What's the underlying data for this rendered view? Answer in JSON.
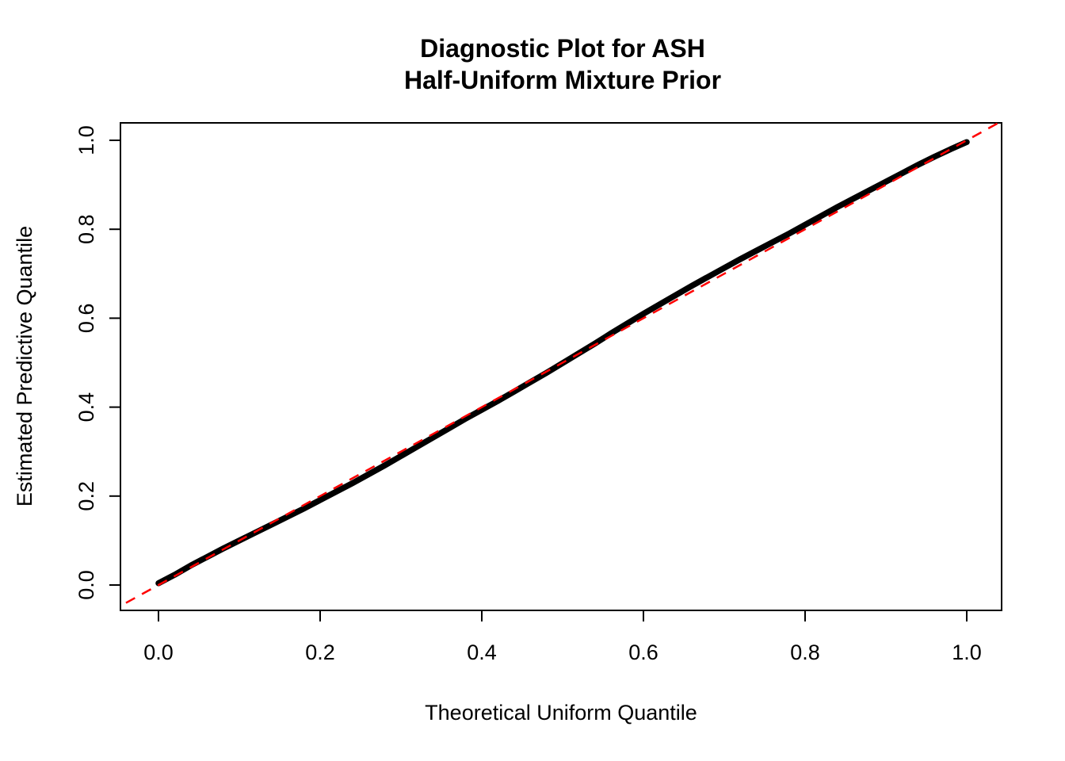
{
  "chart_data": {
    "type": "scatter",
    "title_lines": [
      "Diagnostic Plot for ASH",
      "Half-Uniform Mixture Prior"
    ],
    "xlabel": "Theoretical Uniform Quantile",
    "ylabel": "Estimated Predictive Quantile",
    "xlim": [
      -0.04,
      1.04
    ],
    "ylim": [
      -0.04,
      1.04
    ],
    "x_ticks": [
      0.0,
      0.2,
      0.4,
      0.6,
      0.8,
      1.0
    ],
    "y_ticks": [
      0.0,
      0.2,
      0.4,
      0.6,
      0.8,
      1.0
    ],
    "grid": false,
    "legend": "none",
    "series": [
      {
        "name": "estimated-predictive-quantiles",
        "marker": "filled-point",
        "color": "#000000",
        "x": [
          0,
          0.02,
          0.04,
          0.06,
          0.08,
          0.1,
          0.12,
          0.14,
          0.16,
          0.18,
          0.2,
          0.22,
          0.24,
          0.26,
          0.28,
          0.3,
          0.32,
          0.34,
          0.36,
          0.38,
          0.4,
          0.42,
          0.44,
          0.46,
          0.48,
          0.5,
          0.52,
          0.54,
          0.56,
          0.58,
          0.6,
          0.62,
          0.64,
          0.66,
          0.68,
          0.7,
          0.72,
          0.74,
          0.76,
          0.78,
          0.8,
          0.82,
          0.84,
          0.86,
          0.88,
          0.9,
          0.92,
          0.94,
          0.96,
          0.98,
          1
        ],
        "y": [
          0.004,
          0.023,
          0.044,
          0.063,
          0.082,
          0.1,
          0.118,
          0.136,
          0.154,
          0.172,
          0.191,
          0.21,
          0.229,
          0.249,
          0.269,
          0.29,
          0.311,
          0.332,
          0.353,
          0.374,
          0.394,
          0.414,
          0.435,
          0.456,
          0.477,
          0.499,
          0.521,
          0.543,
          0.566,
          0.588,
          0.61,
          0.631,
          0.652,
          0.673,
          0.693,
          0.713,
          0.733,
          0.752,
          0.771,
          0.79,
          0.81,
          0.83,
          0.85,
          0.869,
          0.888,
          0.907,
          0.926,
          0.945,
          0.963,
          0.98,
          0.996
        ]
      },
      {
        "name": "identity-reference-line",
        "style": "dashed",
        "color": "#FF0000",
        "x": [
          -0.06,
          1.06
        ],
        "y": [
          -0.06,
          1.06
        ]
      }
    ]
  }
}
